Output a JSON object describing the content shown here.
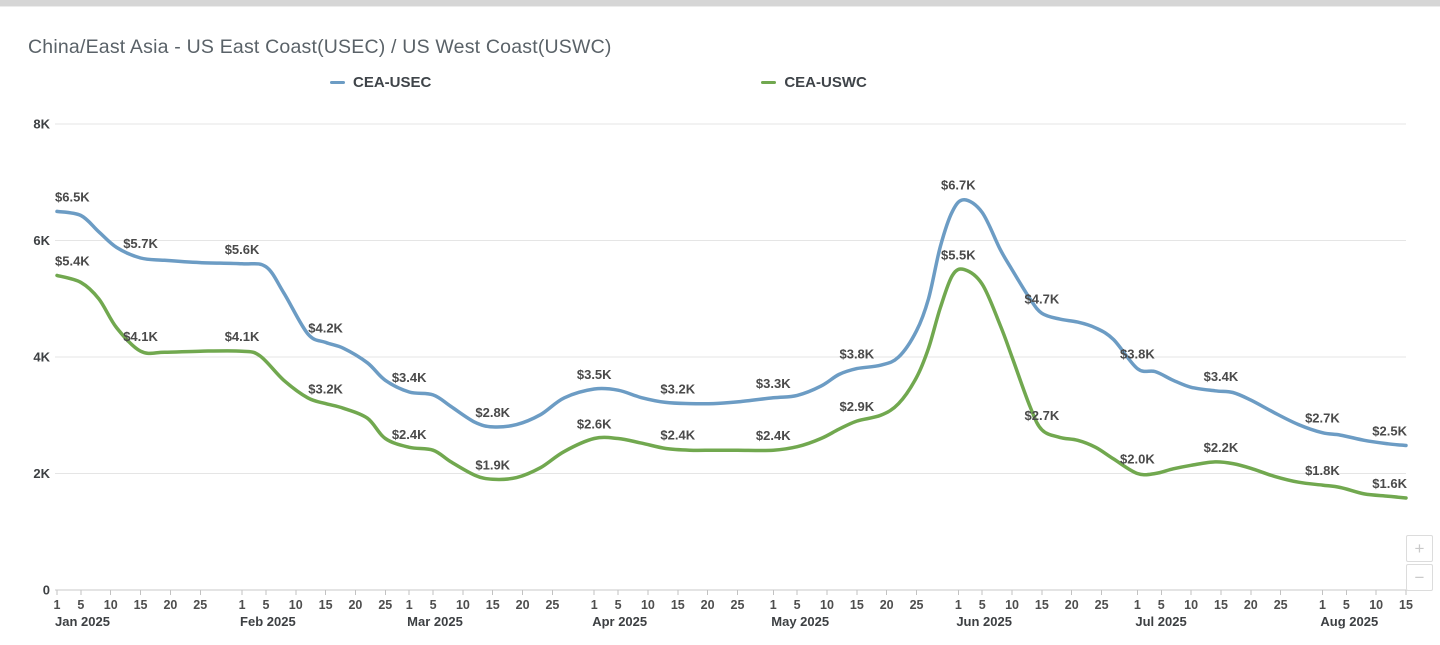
{
  "controls": {
    "zoom_in_label": "+",
    "zoom_out_label": "−"
  },
  "chart_data": {
    "type": "line",
    "title": "China/East Asia - US East Coast(USEC) / US West Coast(USWC)",
    "legend_position": "top-center",
    "grid": "horizontal",
    "y_axis": {
      "min": 0,
      "max": 8000,
      "tick_interval": 2000,
      "tick_labels": [
        "0",
        "2K",
        "4K",
        "6K",
        "8K"
      ]
    },
    "x_axis": {
      "start_date": "2025-01-01",
      "end_date": "2025-08-15",
      "total_days": 226,
      "months": [
        {
          "label": "Jan 2025",
          "start_day": 0,
          "tick_days": [
            1,
            5,
            10,
            15,
            20,
            25
          ]
        },
        {
          "label": "Feb 2025",
          "start_day": 31,
          "tick_days": [
            1,
            5,
            10,
            15,
            20,
            25
          ]
        },
        {
          "label": "Mar 2025",
          "start_day": 59,
          "tick_days": [
            1,
            5,
            10,
            15,
            20,
            25
          ]
        },
        {
          "label": "Apr 2025",
          "start_day": 90,
          "tick_days": [
            1,
            5,
            10,
            15,
            20,
            25
          ]
        },
        {
          "label": "May 2025",
          "start_day": 120,
          "tick_days": [
            1,
            5,
            10,
            15,
            20,
            25
          ]
        },
        {
          "label": "Jun 2025",
          "start_day": 151,
          "tick_days": [
            1,
            5,
            10,
            15,
            20,
            25
          ]
        },
        {
          "label": "Jul 2025",
          "start_day": 181,
          "tick_days": [
            1,
            5,
            10,
            15,
            20,
            25
          ]
        },
        {
          "label": "Aug 2025",
          "start_day": 212,
          "tick_days": [
            1,
            5,
            10,
            15
          ]
        }
      ]
    },
    "series": [
      {
        "name": "CEA-USEC",
        "color": "#6c9cc4",
        "points": [
          [
            0,
            6500
          ],
          [
            4,
            6430
          ],
          [
            7,
            6150
          ],
          [
            10,
            5880
          ],
          [
            14,
            5700
          ],
          [
            18,
            5660
          ],
          [
            24,
            5620
          ],
          [
            31,
            5600
          ],
          [
            35,
            5550
          ],
          [
            38,
            5100
          ],
          [
            42,
            4400
          ],
          [
            45,
            4250
          ],
          [
            48,
            4150
          ],
          [
            52,
            3900
          ],
          [
            55,
            3600
          ],
          [
            59,
            3400
          ],
          [
            63,
            3350
          ],
          [
            66,
            3150
          ],
          [
            70,
            2880
          ],
          [
            73,
            2800
          ],
          [
            77,
            2840
          ],
          [
            81,
            3010
          ],
          [
            85,
            3300
          ],
          [
            90,
            3450
          ],
          [
            94,
            3430
          ],
          [
            98,
            3300
          ],
          [
            102,
            3220
          ],
          [
            106,
            3200
          ],
          [
            110,
            3200
          ],
          [
            114,
            3230
          ],
          [
            120,
            3300
          ],
          [
            124,
            3340
          ],
          [
            128,
            3500
          ],
          [
            131,
            3700
          ],
          [
            134,
            3800
          ],
          [
            138,
            3860
          ],
          [
            141,
            4000
          ],
          [
            144,
            4450
          ],
          [
            146,
            5000
          ],
          [
            148,
            5900
          ],
          [
            150,
            6500
          ],
          [
            152,
            6700
          ],
          [
            155,
            6480
          ],
          [
            158,
            5850
          ],
          [
            160,
            5500
          ],
          [
            163,
            5000
          ],
          [
            165,
            4750
          ],
          [
            168,
            4650
          ],
          [
            171,
            4600
          ],
          [
            174,
            4500
          ],
          [
            177,
            4300
          ],
          [
            181,
            3800
          ],
          [
            184,
            3750
          ],
          [
            187,
            3600
          ],
          [
            190,
            3480
          ],
          [
            194,
            3420
          ],
          [
            197,
            3390
          ],
          [
            200,
            3260
          ],
          [
            204,
            3040
          ],
          [
            208,
            2840
          ],
          [
            212,
            2700
          ],
          [
            215,
            2660
          ],
          [
            219,
            2570
          ],
          [
            223,
            2510
          ],
          [
            226,
            2480
          ]
        ],
        "labels": [
          {
            "day": 0,
            "value": 6500,
            "text": "$6.5K"
          },
          {
            "day": 14,
            "value": 5700,
            "text": "$5.7K"
          },
          {
            "day": 31,
            "value": 5600,
            "text": "$5.6K"
          },
          {
            "day": 45,
            "value": 4250,
            "text": "$4.2K"
          },
          {
            "day": 59,
            "value": 3400,
            "text": "$3.4K"
          },
          {
            "day": 73,
            "value": 2800,
            "text": "$2.8K"
          },
          {
            "day": 90,
            "value": 3450,
            "text": "$3.5K"
          },
          {
            "day": 104,
            "value": 3200,
            "text": "$3.2K"
          },
          {
            "day": 120,
            "value": 3300,
            "text": "$3.3K"
          },
          {
            "day": 134,
            "value": 3800,
            "text": "$3.8K"
          },
          {
            "day": 151,
            "value": 6700,
            "text": "$6.7K"
          },
          {
            "day": 165,
            "value": 4750,
            "text": "$4.7K"
          },
          {
            "day": 181,
            "value": 3800,
            "text": "$3.8K"
          },
          {
            "day": 195,
            "value": 3420,
            "text": "$3.4K"
          },
          {
            "day": 212,
            "value": 2700,
            "text": "$2.7K"
          },
          {
            "day": 226,
            "value": 2480,
            "text": "$2.5K"
          }
        ]
      },
      {
        "name": "CEA-USWC",
        "color": "#71a84f",
        "points": [
          [
            0,
            5400
          ],
          [
            4,
            5280
          ],
          [
            7,
            5000
          ],
          [
            10,
            4500
          ],
          [
            14,
            4100
          ],
          [
            18,
            4080
          ],
          [
            24,
            4100
          ],
          [
            31,
            4100
          ],
          [
            34,
            4020
          ],
          [
            38,
            3600
          ],
          [
            42,
            3300
          ],
          [
            45,
            3200
          ],
          [
            48,
            3120
          ],
          [
            52,
            2950
          ],
          [
            55,
            2600
          ],
          [
            59,
            2450
          ],
          [
            63,
            2400
          ],
          [
            66,
            2200
          ],
          [
            70,
            1970
          ],
          [
            73,
            1900
          ],
          [
            77,
            1930
          ],
          [
            81,
            2100
          ],
          [
            85,
            2380
          ],
          [
            90,
            2600
          ],
          [
            94,
            2600
          ],
          [
            98,
            2520
          ],
          [
            102,
            2430
          ],
          [
            106,
            2400
          ],
          [
            110,
            2400
          ],
          [
            114,
            2400
          ],
          [
            120,
            2400
          ],
          [
            124,
            2460
          ],
          [
            128,
            2600
          ],
          [
            131,
            2760
          ],
          [
            134,
            2900
          ],
          [
            138,
            3000
          ],
          [
            141,
            3200
          ],
          [
            144,
            3650
          ],
          [
            146,
            4150
          ],
          [
            148,
            4850
          ],
          [
            150,
            5400
          ],
          [
            152,
            5500
          ],
          [
            155,
            5250
          ],
          [
            158,
            4550
          ],
          [
            160,
            4000
          ],
          [
            163,
            3150
          ],
          [
            165,
            2750
          ],
          [
            168,
            2620
          ],
          [
            171,
            2570
          ],
          [
            174,
            2450
          ],
          [
            177,
            2250
          ],
          [
            181,
            2000
          ],
          [
            184,
            2000
          ],
          [
            187,
            2080
          ],
          [
            190,
            2140
          ],
          [
            194,
            2200
          ],
          [
            197,
            2170
          ],
          [
            200,
            2090
          ],
          [
            204,
            1950
          ],
          [
            208,
            1850
          ],
          [
            212,
            1800
          ],
          [
            215,
            1760
          ],
          [
            219,
            1650
          ],
          [
            223,
            1610
          ],
          [
            226,
            1580
          ]
        ],
        "labels": [
          {
            "day": 0,
            "value": 5400,
            "text": "$5.4K"
          },
          {
            "day": 14,
            "value": 4100,
            "text": "$4.1K"
          },
          {
            "day": 31,
            "value": 4100,
            "text": "$4.1K"
          },
          {
            "day": 45,
            "value": 3200,
            "text": "$3.2K"
          },
          {
            "day": 59,
            "value": 2420,
            "text": "$2.4K"
          },
          {
            "day": 73,
            "value": 1900,
            "text": "$1.9K"
          },
          {
            "day": 90,
            "value": 2600,
            "text": "$2.6K"
          },
          {
            "day": 104,
            "value": 2410,
            "text": "$2.4K"
          },
          {
            "day": 120,
            "value": 2400,
            "text": "$2.4K"
          },
          {
            "day": 134,
            "value": 2900,
            "text": "$2.9K"
          },
          {
            "day": 151,
            "value": 5500,
            "text": "$5.5K"
          },
          {
            "day": 165,
            "value": 2750,
            "text": "$2.7K"
          },
          {
            "day": 181,
            "value": 2000,
            "text": "$2.0K"
          },
          {
            "day": 195,
            "value": 2200,
            "text": "$2.2K"
          },
          {
            "day": 212,
            "value": 1800,
            "text": "$1.8K"
          },
          {
            "day": 226,
            "value": 1580,
            "text": "$1.6K"
          }
        ]
      }
    ]
  }
}
